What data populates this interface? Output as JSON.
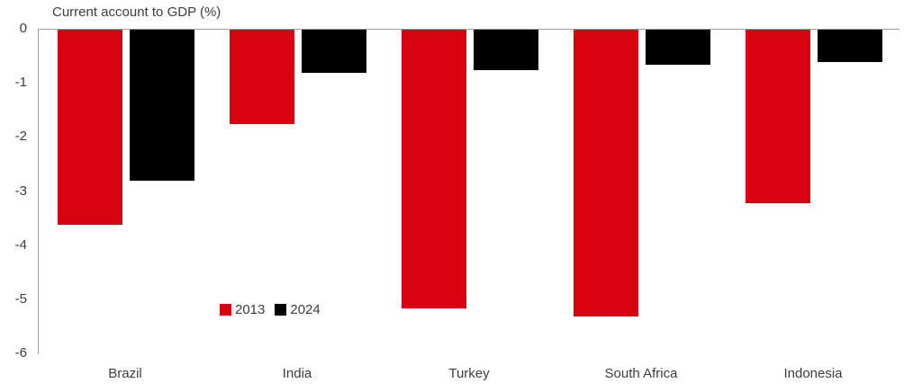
{
  "chart_data": {
    "type": "bar",
    "title": "Current account to GDP (%)",
    "categories": [
      "Brazil",
      "India",
      "Turkey",
      "South Africa",
      "Indonesia"
    ],
    "series": [
      {
        "name": "2013",
        "color": "#d90210",
        "values": [
          -3.6,
          -1.75,
          -5.15,
          -5.3,
          -3.2
        ]
      },
      {
        "name": "2024",
        "color": "#000000",
        "values": [
          -2.8,
          -0.8,
          -0.75,
          -0.65,
          -0.6
        ]
      }
    ],
    "xlabel": "",
    "ylabel": "",
    "ylim": [
      -6,
      0
    ],
    "yticks": [
      0,
      -1,
      -2,
      -3,
      -4,
      -5,
      -6
    ],
    "grid": false,
    "legend_position": "inside-center-lower",
    "axis_color": "#9c9c9c",
    "text_color": "#3c3c3c"
  }
}
